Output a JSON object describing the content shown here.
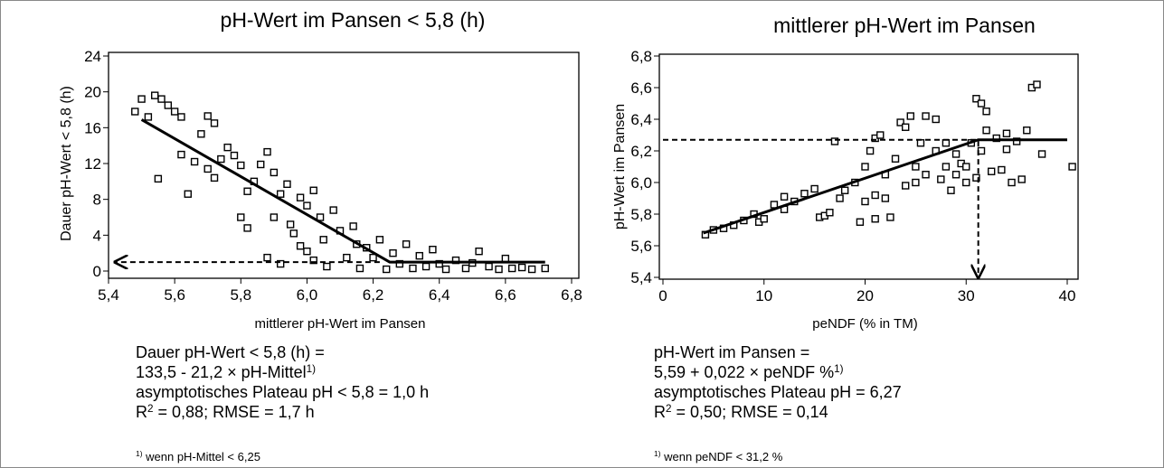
{
  "chart_data": [
    {
      "type": "scatter",
      "title": "pH-Wert im Pansen < 5,8 (h)",
      "x_label": "mittlerer pH-Wert im Pansen",
      "y_label": "Dauer pH-Wert < 5,8 (h)",
      "xlim": [
        5.4,
        6.8
      ],
      "ylim": [
        0,
        24
      ],
      "xticks": [
        {
          "value": 5.4,
          "label": "5,4"
        },
        {
          "value": 5.6,
          "label": "5,6"
        },
        {
          "value": 5.8,
          "label": "5,8"
        },
        {
          "value": 6.0,
          "label": "6,0"
        },
        {
          "value": 6.2,
          "label": "6,2"
        },
        {
          "value": 6.4,
          "label": "6,4"
        },
        {
          "value": 6.6,
          "label": "6,6"
        },
        {
          "value": 6.8,
          "label": "6,8"
        }
      ],
      "yticks": [
        0,
        4,
        8,
        12,
        16,
        20,
        24
      ],
      "series": [
        {
          "color": "#000000",
          "x": [
            5.48,
            5.5,
            5.52,
            5.54,
            5.56,
            5.58,
            5.6,
            5.62,
            5.55,
            5.62,
            5.64,
            5.66,
            5.68,
            5.7,
            5.72,
            5.7,
            5.72,
            5.74,
            5.76,
            5.78,
            5.8,
            5.82,
            5.8,
            5.82,
            5.84,
            5.86,
            5.88,
            5.9,
            5.9,
            5.92,
            5.94,
            5.95,
            5.96,
            5.98,
            6.0,
            6.0,
            6.02,
            6.04,
            6.05,
            6.06,
            6.08,
            6.1,
            6.12,
            6.14,
            6.15,
            6.16,
            6.18,
            6.2,
            6.22,
            6.24,
            6.26,
            6.28,
            6.3,
            6.32,
            6.34,
            6.36,
            6.38,
            6.4,
            6.42,
            6.45,
            6.48,
            6.5,
            6.52,
            6.55,
            6.58,
            6.6,
            6.62,
            6.65,
            6.68,
            6.72,
            5.88,
            5.92,
            5.98,
            6.02
          ],
          "values": [
            17.8,
            19.2,
            17.2,
            19.6,
            19.2,
            18.5,
            17.8,
            17.2,
            10.3,
            13,
            8.6,
            12.2,
            15.3,
            17.3,
            16.5,
            11.4,
            10.4,
            12.5,
            13.8,
            12.9,
            11.8,
            8.9,
            6,
            4.8,
            10,
            11.9,
            13.3,
            11,
            6,
            8.6,
            9.7,
            5.2,
            4.2,
            8.2,
            7.3,
            2.2,
            9,
            6,
            3.5,
            0.5,
            6.8,
            4.5,
            1.5,
            5,
            3,
            0.3,
            2.6,
            1.5,
            3.5,
            0.2,
            2,
            0.8,
            3,
            0.3,
            1.7,
            0.5,
            2.4,
            0.8,
            0.2,
            1.2,
            0.3,
            0.9,
            2.2,
            0.5,
            0.2,
            1.4,
            0.3,
            0.4,
            0.2,
            0.3,
            1.5,
            0.8,
            2.8,
            1.2
          ]
        }
      ],
      "fit_line": {
        "x": [
          5.5,
          6.25,
          6.72
        ],
        "values": [
          16.9,
          1.0,
          1.0
        ]
      },
      "reference": {
        "x": [
          6.22,
          5.42
        ],
        "values": [
          1.0,
          1.0
        ]
      },
      "notes": [
        [
          "Dauer pH-Wert < 5,8 (h) ="
        ],
        [
          "133,5 - 21,2 × pH-Mittel",
          {
            "sup": "1)"
          }
        ],
        [
          "asymptotisches Plateau pH < 5,8 = 1,0 h"
        ],
        [
          "R",
          {
            "sup": "2"
          },
          " = 0,88; RMSE = 1,7 h"
        ]
      ],
      "footnote": [
        {
          "sup": "1)"
        },
        " wenn pH-Mittel < 6,25"
      ]
    },
    {
      "type": "scatter",
      "title": "mittlerer pH-Wert im Pansen",
      "x_label": "peNDF (% in TM)",
      "y_label": "pH-Wert im Pansen",
      "xlim": [
        0,
        40
      ],
      "ylim": [
        5.4,
        6.8
      ],
      "xticks": [
        0,
        10,
        20,
        30,
        40
      ],
      "yticks": [
        {
          "value": 5.4,
          "label": "5,4"
        },
        {
          "value": 5.6,
          "label": "5,6"
        },
        {
          "value": 5.8,
          "label": "5,8"
        },
        {
          "value": 6.0,
          "label": "6,0"
        },
        {
          "value": 6.2,
          "label": "6,2"
        },
        {
          "value": 6.4,
          "label": "6,4"
        },
        {
          "value": 6.6,
          "label": "6,6"
        },
        {
          "value": 6.8,
          "label": "6,8"
        }
      ],
      "series": [
        {
          "color": "#000000",
          "x": [
            4.2,
            5,
            6,
            7,
            8,
            9,
            9.5,
            10,
            11,
            12,
            12,
            13,
            14,
            15,
            15.5,
            16,
            16.5,
            17,
            17.5,
            18,
            19,
            19.5,
            20,
            20,
            20.5,
            21,
            21,
            21.5,
            21,
            22,
            22,
            22.5,
            23,
            23.5,
            24,
            24,
            24.5,
            25,
            25,
            25.5,
            26,
            26,
            27,
            27,
            27.5,
            28,
            28,
            28.5,
            29,
            29,
            29.5,
            30,
            30,
            30.5,
            31,
            31,
            31.5,
            31.5,
            32,
            32,
            32.5,
            33,
            33.5,
            34,
            34,
            34.5,
            35,
            35.5,
            36,
            36.5,
            37,
            37.5,
            40.5
          ],
          "values": [
            5.67,
            5.7,
            5.71,
            5.73,
            5.76,
            5.8,
            5.75,
            5.77,
            5.86,
            5.83,
            5.91,
            5.88,
            5.93,
            5.96,
            5.78,
            5.79,
            5.81,
            6.26,
            5.9,
            5.95,
            6.0,
            5.75,
            6.1,
            5.88,
            6.2,
            6.28,
            5.92,
            6.3,
            5.77,
            6.05,
            5.9,
            5.78,
            6.15,
            6.38,
            6.35,
            5.98,
            6.42,
            6.1,
            6.0,
            6.25,
            6.05,
            6.42,
            6.4,
            6.2,
            6.02,
            6.1,
            6.25,
            5.95,
            6.18,
            6.05,
            6.12,
            6.1,
            6.0,
            6.25,
            6.53,
            6.03,
            6.2,
            6.5,
            6.45,
            6.33,
            6.07,
            6.28,
            6.08,
            6.21,
            6.31,
            6.0,
            6.26,
            6.02,
            6.33,
            6.6,
            6.62,
            6.18,
            6.1
          ]
        }
      ],
      "fit_line": {
        "x": [
          4,
          31.2,
          40
        ],
        "values": [
          5.68,
          6.27,
          6.27
        ]
      },
      "reference": {
        "x": [
          0,
          31.2,
          31.2
        ],
        "values": [
          6.27,
          6.27,
          5.4
        ]
      },
      "notes": [
        [
          "pH-Wert im Pansen ="
        ],
        [
          "5,59 + 0,022 × peNDF %",
          {
            "sup": "1)"
          }
        ],
        [
          "asymptotisches Plateau pH = 6,27"
        ],
        [
          "R",
          {
            "sup": "2"
          },
          " = 0,50; RMSE = 0,14"
        ]
      ],
      "footnote": [
        {
          "sup": "1)"
        },
        " wenn peNDF < 31,2 %"
      ]
    }
  ]
}
